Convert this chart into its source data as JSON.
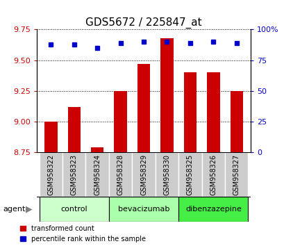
{
  "title": "GDS5672 / 225847_at",
  "samples": [
    "GSM958322",
    "GSM958323",
    "GSM958324",
    "GSM958328",
    "GSM958329",
    "GSM958330",
    "GSM958325",
    "GSM958326",
    "GSM958327"
  ],
  "bar_values": [
    9.0,
    9.12,
    8.79,
    9.25,
    9.47,
    9.68,
    9.4,
    9.4,
    9.25
  ],
  "bar_base": 8.75,
  "blue_values": [
    9.63,
    9.63,
    9.6,
    9.64,
    9.65,
    9.65,
    9.64,
    9.65,
    9.64
  ],
  "ylim_left": [
    8.75,
    9.75
  ],
  "ylim_right": [
    0,
    100
  ],
  "yticks_left": [
    8.75,
    9.0,
    9.25,
    9.5,
    9.75
  ],
  "yticks_right": [
    0,
    25,
    50,
    75,
    100
  ],
  "bar_color": "#cc0000",
  "blue_color": "#0000cc",
  "groups": [
    {
      "label": "control",
      "indices": [
        0,
        1,
        2
      ],
      "color": "#ccffcc"
    },
    {
      "label": "bevacizumab",
      "indices": [
        3,
        4,
        5
      ],
      "color": "#aaffaa"
    },
    {
      "label": "dibenzazepine",
      "indices": [
        6,
        7,
        8
      ],
      "color": "#44ee44"
    }
  ],
  "agent_label": "agent",
  "legend_bar_label": "transformed count",
  "legend_blue_label": "percentile rank within the sample",
  "tick_label_bg": "#cccccc",
  "title_fontsize": 11
}
